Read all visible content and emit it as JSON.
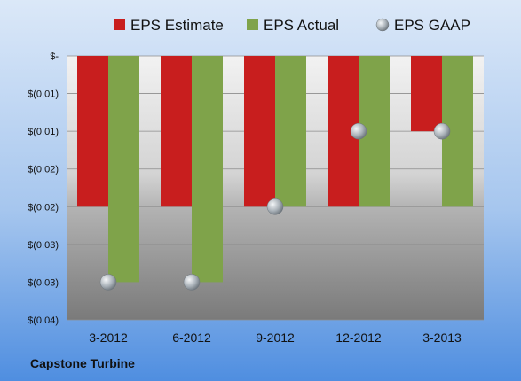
{
  "company": "Capstone Turbine",
  "chart_data": {
    "type": "bar",
    "categories": [
      "3-2012",
      "6-2012",
      "9-2012",
      "12-2012",
      "3-2013"
    ],
    "series": [
      {
        "name": "EPS Estimate",
        "color": "#c81e1e",
        "kind": "bar",
        "values": [
          -0.02,
          -0.02,
          -0.02,
          -0.02,
          -0.01
        ]
      },
      {
        "name": "EPS Actual",
        "color": "#7fa34a",
        "kind": "bar",
        "values": [
          -0.03,
          -0.03,
          -0.02,
          -0.02,
          -0.02
        ]
      },
      {
        "name": "EPS GAAP",
        "color": "#9aa3ab",
        "kind": "marker",
        "values": [
          -0.03,
          -0.03,
          -0.02,
          -0.01,
          -0.01
        ]
      }
    ],
    "y_ticks": [
      "$-",
      "$(0.01)",
      "$(0.01)",
      "$(0.02)",
      "$(0.02)",
      "$(0.03)",
      "$(0.03)",
      "$(0.04)"
    ],
    "ylim": [
      -0.035,
      0
    ],
    "grid": true,
    "legend_position": "top"
  }
}
